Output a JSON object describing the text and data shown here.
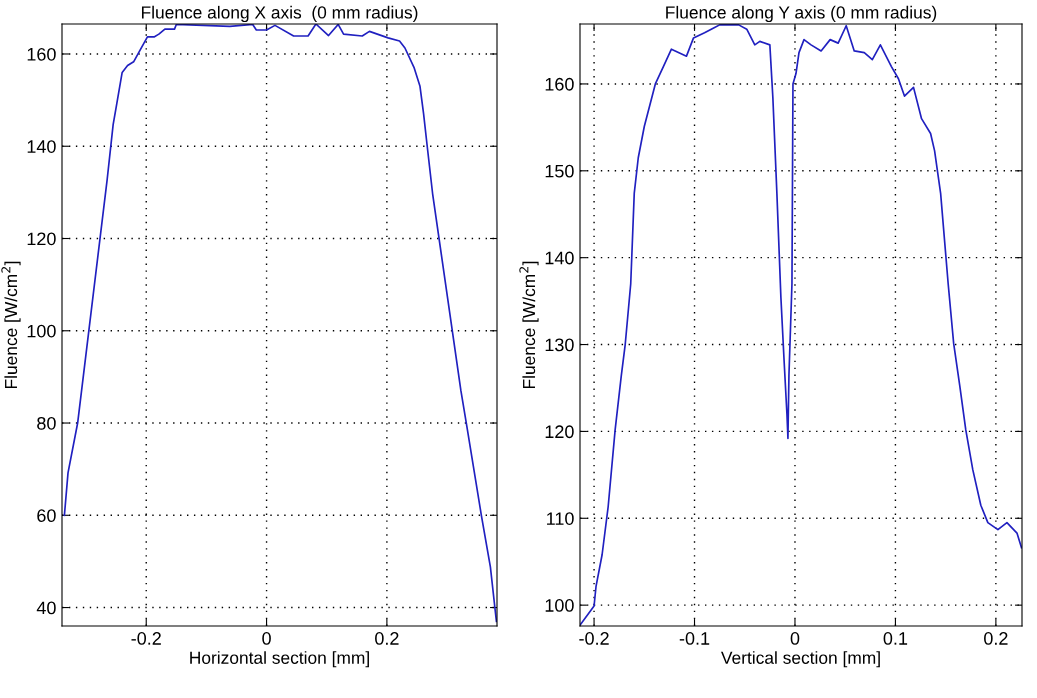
{
  "chart_data": [
    {
      "type": "line",
      "title": "Fluence along X axis  (0 mm radius)",
      "xlabel": "Horizontal section [mm]",
      "ylabel": "Fluence [W/cm$^{2}$]",
      "xlim": [
        -0.34,
        0.383
      ],
      "ylim": [
        36,
        166.5
      ],
      "xticks": [
        -0.2,
        0,
        0.2
      ],
      "yticks": [
        40,
        60,
        80,
        100,
        120,
        140,
        160
      ],
      "grid": true,
      "line_style": "solid",
      "series": [
        {
          "color": "#2020c0",
          "x": [
            -0.336,
            -0.33,
            -0.314,
            -0.265,
            -0.255,
            -0.249,
            -0.24,
            -0.231,
            -0.221,
            -0.21,
            -0.198,
            -0.187,
            -0.179,
            -0.169,
            -0.153,
            -0.15,
            -0.061,
            -0.023,
            -0.017,
            0,
            0.014,
            0.045,
            0.069,
            0.082,
            0.103,
            0.119,
            0.128,
            0.159,
            0.171,
            0.202,
            0.221,
            0.23,
            0.245,
            0.255,
            0.261,
            0.267,
            0.276,
            0.323,
            0.332,
            0.357,
            0.372,
            0.382
          ],
          "values": [
            60,
            69.2,
            80,
            132.7,
            144.7,
            149.2,
            156,
            157.5,
            158.3,
            160.9,
            163.7,
            163.7,
            164.3,
            165.4,
            165.4,
            166.4,
            166,
            166.4,
            165.2,
            165.2,
            166.2,
            163.9,
            163.9,
            166.5,
            164,
            166.4,
            164.3,
            163.9,
            164.9,
            163.5,
            162.8,
            161.3,
            157.1,
            153,
            147,
            140,
            129.7,
            87,
            80,
            60,
            48.8,
            37
          ]
        }
      ]
    },
    {
      "type": "line",
      "title": "Fluence along Y axis (0 mm radius)",
      "xlabel": "Vertical section [mm]",
      "ylabel": "Fluence [W/cm$^{2}$]",
      "xlim": [
        -0.214,
        0.226
      ],
      "ylim": [
        97.6,
        166.9
      ],
      "xticks": [
        -0.2,
        -0.1,
        0,
        0.1,
        0.2
      ],
      "yticks": [
        100,
        110,
        120,
        130,
        140,
        150,
        160
      ],
      "grid": true,
      "line_style": "solid",
      "series": [
        {
          "color": "#2020c0",
          "x": [
            -0.214,
            -0.2,
            -0.198,
            -0.192,
            -0.186,
            -0.179,
            -0.173,
            -0.169,
            -0.1635,
            -0.16,
            -0.156,
            -0.15,
            -0.139,
            -0.131,
            -0.123,
            -0.108,
            -0.101,
            -0.09,
            -0.08,
            -0.075,
            -0.056,
            -0.048,
            -0.04,
            -0.035,
            -0.025,
            -0.022,
            -0.018,
            -0.014,
            -0.011,
            -0.008,
            -0.007,
            -0.006,
            -0.003,
            -0.002,
            0.001,
            0.004,
            0.009,
            0.016,
            0.026,
            0.035,
            0.043,
            0.051,
            0.059,
            0.069,
            0.077,
            0.085,
            0.096,
            0.103,
            0.109,
            0.118,
            0.126,
            0.135,
            0.139,
            0.145,
            0.1525,
            0.158,
            0.164,
            0.17,
            0.177,
            0.185,
            0.192,
            0.202,
            0.211,
            0.221,
            0.2255
          ],
          "values": [
            97.7,
            99.9,
            102.2,
            105.8,
            111.3,
            120.2,
            126.3,
            130,
            137,
            147.4,
            151.5,
            155.1,
            160,
            162,
            164,
            163.2,
            165.3,
            165.9,
            166.5,
            166.8,
            166.8,
            166.3,
            164.5,
            164.9,
            164.5,
            158.4,
            147.4,
            135.4,
            128.5,
            122,
            119.2,
            126.5,
            137,
            160,
            161.2,
            163.6,
            165.1,
            164.5,
            163.8,
            165.1,
            164.7,
            166.7,
            163.8,
            163.6,
            162.8,
            164.5,
            162,
            160.6,
            158.6,
            159.6,
            156,
            154.3,
            152.3,
            147.4,
            137,
            130.1,
            125.3,
            120.2,
            115.6,
            111.5,
            109.5,
            108.7,
            109.5,
            108.3,
            106.6
          ]
        }
      ]
    }
  ]
}
